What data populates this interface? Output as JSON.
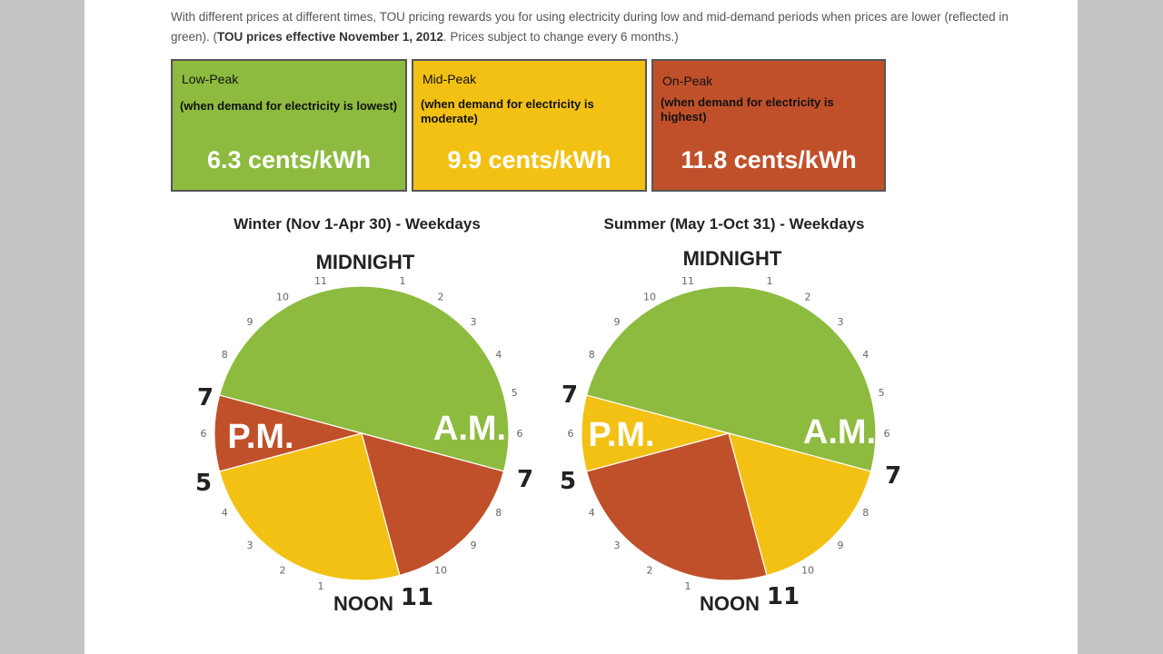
{
  "intro": {
    "line1": "With different prices at different times, TOU pricing rewards you for using electricity during low and mid-demand periods when prices are lower (reflected in",
    "line2_prefix": "green).  (",
    "line2_bold": "TOU prices effective November 1, 2012",
    "line2_suffix": ". Prices subject to change every 6 months.)"
  },
  "price_boxes": [
    {
      "title": "Low-Peak",
      "desc": "(when demand for electricity is lowest)",
      "price": "6.3 cents/kWh",
      "color": "#8dbb3f"
    },
    {
      "title": "Mid-Peak",
      "desc": "(when demand for electricity is moderate)",
      "price": "9.9 cents/kWh",
      "color": "#f2c113"
    },
    {
      "title": "On-Peak",
      "desc": "(when demand for electricity is highest)",
      "price": "11.8 cents/kWh",
      "color": "#c0502a"
    }
  ],
  "chart_data": [
    {
      "type": "pie",
      "title": "Winter (Nov 1-Apr 30) - Weekdays",
      "top_label": "MIDNIGHT",
      "bottom_label": "NOON",
      "am_label": "A.M.",
      "pm_label": "P.M.",
      "hour_labels": [
        "11",
        "1",
        "2",
        "3",
        "4",
        "5",
        "6",
        "8",
        "9",
        "10",
        "2",
        "1",
        "3",
        "4",
        "6",
        "8",
        "9",
        "10"
      ],
      "major_labels": {
        "left_top": "7",
        "left_bottom": "5",
        "right": "7",
        "bottom_right": "11"
      },
      "segments": [
        {
          "label": "Low-Peak",
          "start_hour": 19,
          "end_hour": 7,
          "color": "#8dbb3f"
        },
        {
          "label": "On-Peak",
          "start_hour": 7,
          "end_hour": 11,
          "color": "#c0502a"
        },
        {
          "label": "Mid-Peak",
          "start_hour": 11,
          "end_hour": 17,
          "color": "#f2c113"
        },
        {
          "label": "On-Peak",
          "start_hour": 17,
          "end_hour": 19,
          "color": "#c0502a"
        }
      ]
    },
    {
      "type": "pie",
      "title": "Summer (May 1-Oct 31) - Weekdays",
      "top_label": "MIDNIGHT",
      "bottom_label": "NOON",
      "am_label": "A.M.",
      "pm_label": "P.M.",
      "hour_labels": [
        "11",
        "1",
        "2",
        "3",
        "4",
        "5",
        "6",
        "8",
        "9",
        "10",
        "2",
        "1",
        "3",
        "4",
        "6",
        "8",
        "9",
        "10"
      ],
      "major_labels": {
        "left_top": "7",
        "left_bottom": "5",
        "right": "7",
        "bottom_right": "11"
      },
      "segments": [
        {
          "label": "Low-Peak",
          "start_hour": 19,
          "end_hour": 7,
          "color": "#8dbb3f"
        },
        {
          "label": "Mid-Peak",
          "start_hour": 7,
          "end_hour": 11,
          "color": "#f2c113"
        },
        {
          "label": "On-Peak",
          "start_hour": 11,
          "end_hour": 17,
          "color": "#c0502a"
        },
        {
          "label": "Mid-Peak",
          "start_hour": 17,
          "end_hour": 19,
          "color": "#f2c113"
        }
      ]
    }
  ]
}
